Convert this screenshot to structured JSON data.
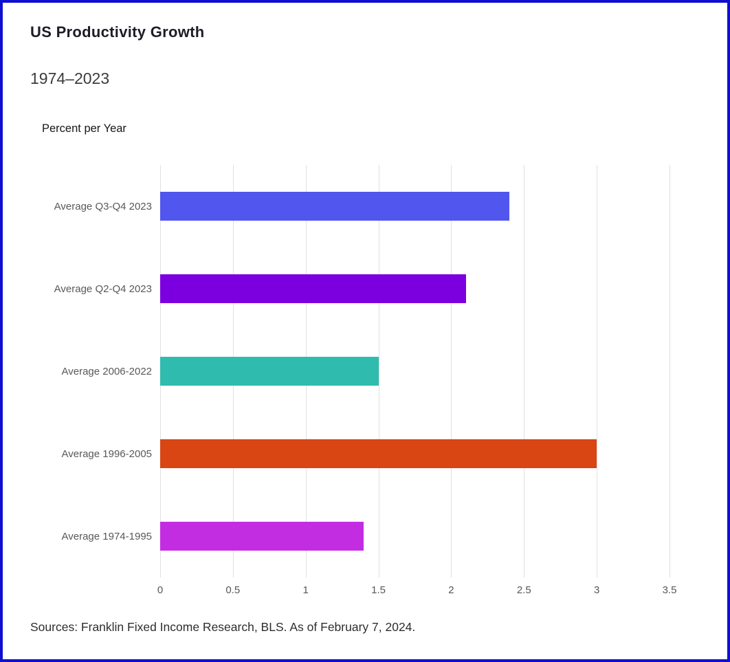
{
  "page": {
    "border_color": "#0f0fd0",
    "background_color": "#ffffff",
    "gridline_color": "#e0e0e0"
  },
  "chart_data": {
    "type": "bar",
    "orientation": "horizontal",
    "title": "US Productivity Growth",
    "subtitle": "1974–2023",
    "axis_unit_label": "Percent per Year",
    "categories": [
      "Average Q3-Q4 2023",
      "Average Q2-Q4 2023",
      "Average 2006-2022",
      "Average 1996-2005",
      "Average 1974-1995"
    ],
    "values": [
      2.4,
      2.1,
      1.5,
      3.0,
      1.4
    ],
    "bar_colors": [
      "#5156ee",
      "#7c00df",
      "#2fbcae",
      "#d94513",
      "#c32de2"
    ],
    "xlim": [
      0,
      3.5
    ],
    "xticks": [
      0,
      0.5,
      1,
      1.5,
      2,
      2.5,
      3,
      3.5
    ],
    "xtick_labels": [
      "0",
      "0.5",
      "1",
      "1.5",
      "2",
      "2.5",
      "3",
      "3.5"
    ],
    "grid": true,
    "legend": false,
    "source": "Sources: Franklin Fixed Income Research, BLS. As of February 7, 2024."
  }
}
